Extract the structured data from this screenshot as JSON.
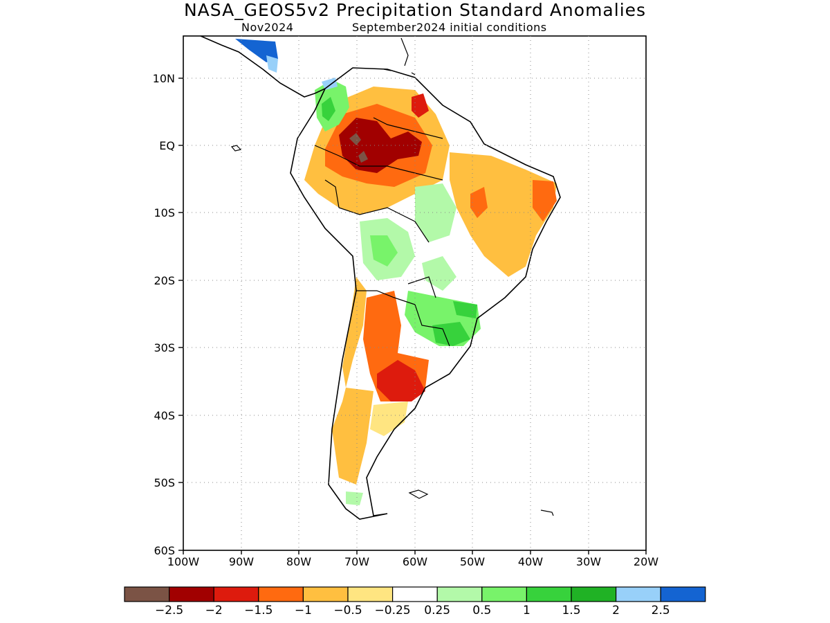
{
  "header": {
    "title": "NASA_GEOS5v2 Precipitation Standard Anomalies",
    "valid_month": "Nov2024",
    "init": "September2024 initial conditions"
  },
  "axes": {
    "lat_labels": [
      "10N",
      "EQ",
      "10S",
      "20S",
      "30S",
      "40S",
      "50S",
      "60S"
    ],
    "lon_labels": [
      "100W",
      "90W",
      "80W",
      "70W",
      "60W",
      "50W",
      "40W",
      "30W",
      "20W"
    ]
  },
  "colorbar": {
    "colors": [
      "#7b5345",
      "#a10000",
      "#dd1b0d",
      "#ff6a10",
      "#ffbf40",
      "#ffe581",
      "#ffffff",
      "#b3f9a9",
      "#78f36a",
      "#37d23c",
      "#20b225",
      "#98d0f9",
      "#1464d2"
    ],
    "labels": [
      "−2.5",
      "−2",
      "−1.5",
      "−1",
      "−0.5",
      "−0.25",
      "0.25",
      "0.5",
      "1",
      "1.5",
      "2",
      "2.5"
    ]
  },
  "anomaly_regions": [
    {
      "name": "southern-argentina-dry",
      "level": "-0.5",
      "color": "#ffbf40"
    },
    {
      "name": "central-argentina-dry",
      "level": "-1.5",
      "color": "#dd1b0d"
    },
    {
      "name": "northern-argentina-dry",
      "level": "-1",
      "color": "#ff6a10"
    },
    {
      "name": "amazon-dry",
      "level": "-2",
      "color": "#a10000"
    },
    {
      "name": "northeast-brazil-dry",
      "level": "-0.5",
      "color": "#ffbf40"
    },
    {
      "name": "southern-brazil-wet",
      "level": "1",
      "color": "#78f36a"
    },
    {
      "name": "bolivia-wet",
      "level": "0.5",
      "color": "#b3f9a9"
    },
    {
      "name": "colombia-wet",
      "level": "1",
      "color": "#78f36a"
    },
    {
      "name": "central-america-wet",
      "level": "2.5",
      "color": "#1464d2"
    }
  ]
}
